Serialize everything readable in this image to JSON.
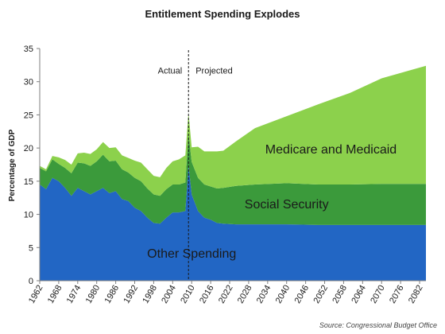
{
  "chart_data": {
    "type": "area",
    "title": "Entitlement Spending  Explodes",
    "ylabel": "Percentage of GDP",
    "xlabel": "",
    "ylim": [
      0,
      35
    ],
    "xlim": [
      1962,
      2084
    ],
    "yticks": [
      "0",
      "5",
      "10",
      "15",
      "20",
      "25",
      "30",
      "35"
    ],
    "xticks": [
      "1962",
      "1968",
      "1974",
      "1980",
      "1986",
      "1992",
      "1998",
      "2004",
      "2010",
      "2016",
      "2022",
      "2028",
      "2034",
      "2040",
      "2046",
      "2052",
      "2058",
      "2064",
      "2070",
      "2076",
      "2082"
    ],
    "grid": false,
    "stacked": true,
    "divider": {
      "x": 2009,
      "left_label": "Actual",
      "right_label": "Projected"
    },
    "x": [
      1962,
      1964,
      1966,
      1968,
      1970,
      1972,
      1974,
      1976,
      1978,
      1980,
      1982,
      1984,
      1986,
      1988,
      1990,
      1992,
      1994,
      1996,
      1998,
      2000,
      2002,
      2004,
      2006,
      2008,
      2009,
      2010,
      2012,
      2014,
      2016,
      2018,
      2020,
      2024,
      2030,
      2040,
      2050,
      2060,
      2070,
      2084
    ],
    "series": [
      {
        "name": "Other Spending",
        "color": "#2266c4",
        "values": [
          14.5,
          13.8,
          15.5,
          15.0,
          14.0,
          12.8,
          14.0,
          13.5,
          13.0,
          13.5,
          14.0,
          13.2,
          13.5,
          12.3,
          12.0,
          11.0,
          10.5,
          9.5,
          8.7,
          8.6,
          9.5,
          10.3,
          10.3,
          10.5,
          17.5,
          13.0,
          10.5,
          9.5,
          9.2,
          8.7,
          8.6,
          8.5,
          8.5,
          8.5,
          8.4,
          8.4,
          8.4,
          8.4
        ]
      },
      {
        "name": "Social Security",
        "color": "#3b9a3b",
        "values": [
          2.5,
          2.7,
          2.8,
          2.6,
          3.0,
          3.4,
          3.8,
          4.2,
          4.3,
          4.5,
          5.0,
          4.8,
          4.6,
          4.5,
          4.3,
          4.5,
          4.5,
          4.4,
          4.3,
          4.2,
          4.3,
          4.2,
          4.2,
          4.3,
          4.8,
          4.9,
          5.0,
          5.0,
          5.0,
          5.2,
          5.4,
          5.8,
          6.0,
          6.2,
          6.1,
          6.1,
          6.2,
          6.2
        ]
      },
      {
        "name": "Medicare and Medicaid",
        "color": "#8cd14c",
        "values": [
          0.3,
          0.3,
          0.5,
          1.0,
          1.2,
          1.3,
          1.4,
          1.6,
          1.8,
          1.8,
          1.9,
          2.0,
          2.0,
          2.1,
          2.2,
          2.6,
          2.8,
          2.9,
          2.8,
          2.8,
          3.2,
          3.5,
          3.8,
          4.1,
          3.0,
          2.2,
          4.7,
          5.0,
          5.3,
          5.6,
          5.6,
          6.7,
          8.5,
          10.1,
          12.1,
          13.8,
          15.9,
          17.8
        ]
      }
    ],
    "area_labels": [
      "Other Spending",
      "Social Security",
      "Medicare and Medicaid"
    ],
    "source": "Source: Congressional Budget Office"
  }
}
